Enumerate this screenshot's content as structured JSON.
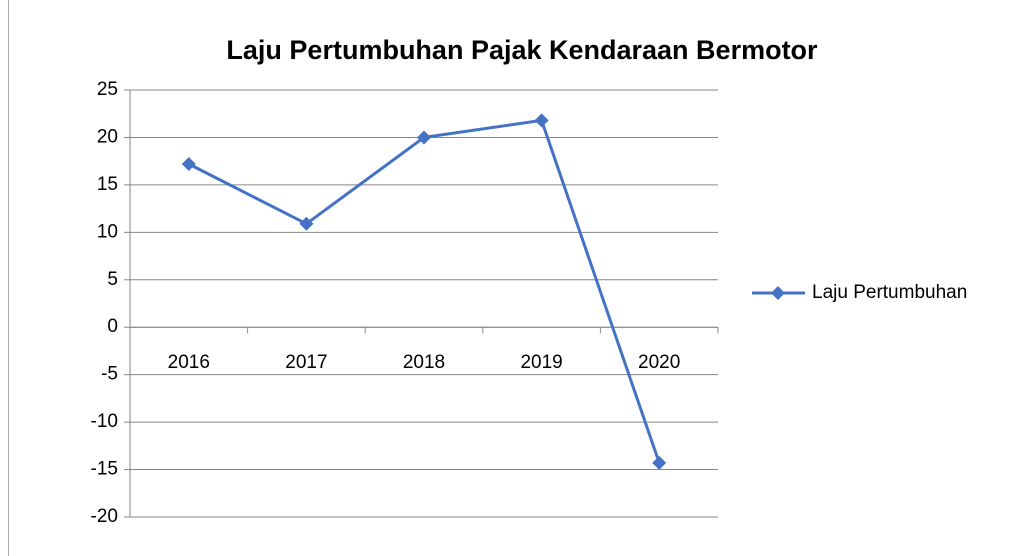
{
  "chart_data": {
    "type": "line",
    "title": "Laju Pertumbuhan Pajak Kendaraan Bermotor",
    "categories": [
      "2016",
      "2017",
      "2018",
      "2019",
      "2020"
    ],
    "series": [
      {
        "name": "Laju Pertumbuhan",
        "color": "#4472c4",
        "values": [
          17.2,
          10.9,
          20,
          21.8,
          -14.3
        ]
      }
    ],
    "ylim": [
      -20,
      25
    ],
    "yticks": [
      -20,
      -15,
      -10,
      -5,
      0,
      5,
      10,
      15,
      20,
      25
    ],
    "grid": true,
    "legend": "right"
  }
}
